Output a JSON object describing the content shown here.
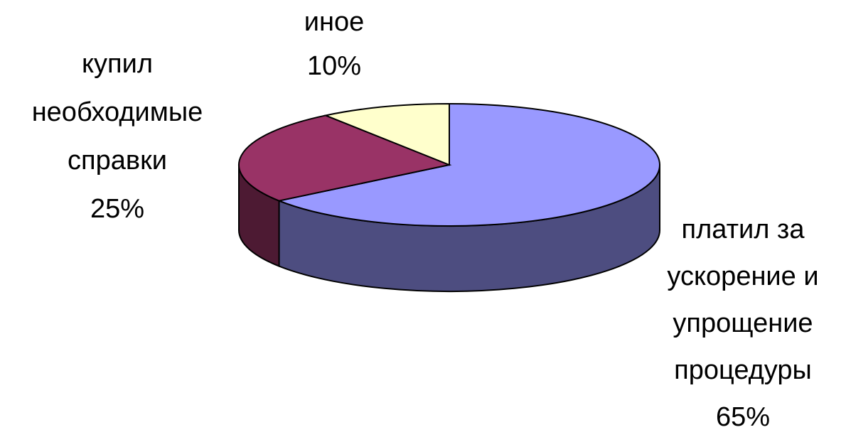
{
  "chart_data": {
    "type": "pie3d",
    "categories": [
      "платил за ускорение и упрощение процедуры",
      "купил необходимые справки",
      "иное"
    ],
    "values": [
      65,
      25,
      10
    ],
    "value_labels": [
      "65%",
      "25%",
      "10%"
    ],
    "colors": [
      "#9999ff",
      "#993366",
      "#ffffcc"
    ]
  }
}
